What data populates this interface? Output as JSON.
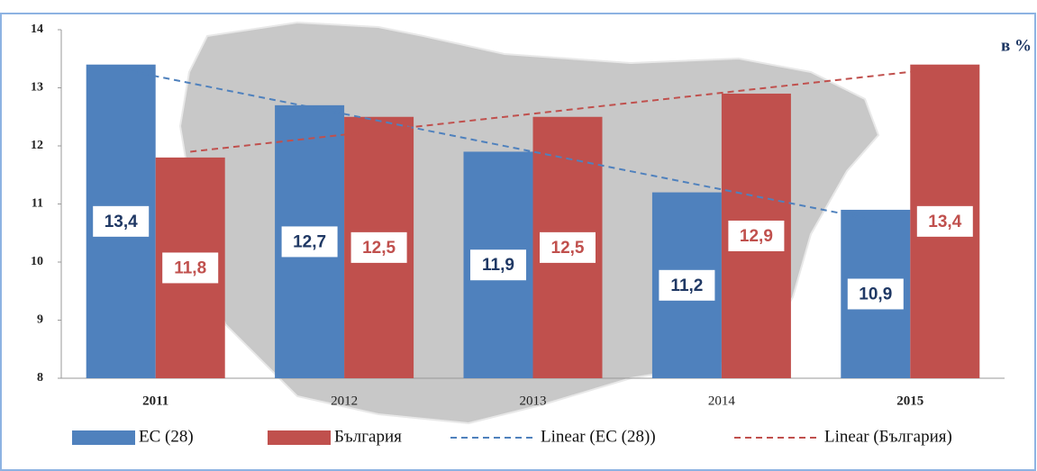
{
  "chart_data": {
    "type": "bar",
    "unit_label": "в %",
    "categories": [
      "2011",
      "2012",
      "2013",
      "2014",
      "2015"
    ],
    "series": [
      {
        "name": "ЕС (28)",
        "color": "#4f81bd",
        "values": [
          13.4,
          12.7,
          11.9,
          11.2,
          10.9
        ],
        "value_labels": [
          "13,4",
          "12,7",
          "11,9",
          "11,2",
          "10,9"
        ],
        "label_color": "#1f3864",
        "trend_name": "Linear (ЕС (28))"
      },
      {
        "name": "България",
        "color": "#c0504d",
        "values": [
          11.8,
          12.5,
          12.5,
          12.9,
          13.4
        ],
        "value_labels": [
          "11,8",
          "12,5",
          "12,5",
          "12,9",
          "13,4"
        ],
        "label_color": "#c0504d",
        "trend_name": "Linear (България)"
      }
    ],
    "ylim": [
      8,
      14
    ],
    "yticks": [
      8,
      9,
      10,
      11,
      12,
      13,
      14
    ]
  }
}
